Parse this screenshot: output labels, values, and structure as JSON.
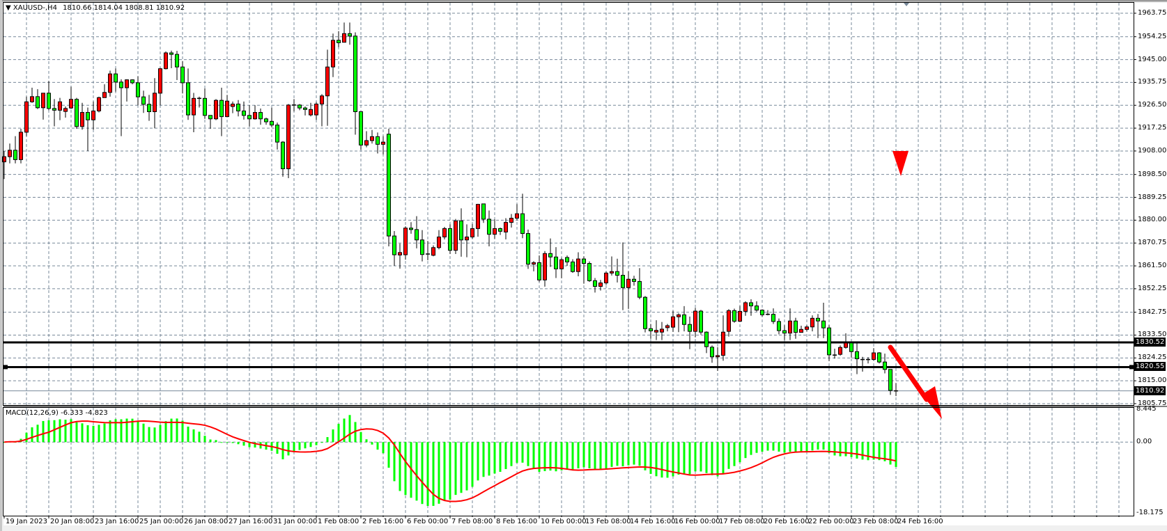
{
  "header": {
    "symbol": "XAUUSD-,H4",
    "ohlc": "1810.66 1814.04 1808.81 1810.92"
  },
  "indicator": {
    "label": "MACD(12,26,9)",
    "values": "-6.333 -4.823",
    "axis_labels": [
      "8.445",
      "0.00",
      "-18.175"
    ]
  },
  "colors": {
    "bull": "#ff0000",
    "bear": "#00ff00",
    "outline": "#000000",
    "grid": "#778899",
    "macd_histogram": "#00ff00",
    "macd_signal": "#ff0000",
    "annotation": "#ff0000"
  },
  "price_axis": [
    "1963.75",
    "1954.25",
    "1945.00",
    "1935.75",
    "1926.50",
    "1917.25",
    "1908.00",
    "1898.50",
    "1889.25",
    "1880.00",
    "1870.75",
    "1861.50",
    "1852.25",
    "1842.75",
    "1833.50",
    "1824.25",
    "1815.00",
    "1805.75"
  ],
  "price_tags": {
    "resistance": "1830.52",
    "support": "1820.55",
    "bid": "1810.92"
  },
  "time_axis": [
    "19 Jan 2023",
    "20 Jan 08:00",
    "23 Jan 16:00",
    "25 Jan 00:00",
    "26 Jan 08:00",
    "27 Jan 16:00",
    "31 Jan 00:00",
    "1 Feb 08:00",
    "2 Feb 16:00",
    "6 Feb 00:00",
    "7 Feb 08:00",
    "8 Feb 16:00",
    "10 Feb 00:00",
    "13 Feb 08:00",
    "14 Feb 16:00",
    "16 Feb 00:00",
    "17 Feb 08:00",
    "20 Feb 16:00",
    "22 Feb 00:00",
    "23 Feb 08:00",
    "24 Feb 16:00"
  ],
  "chart_data": {
    "type": "candlestick",
    "timeframe": "H4",
    "ylim": [
      1805.75,
      1963.75
    ],
    "grid": true,
    "horizontal_lines": [
      1830.52,
      1820.55
    ],
    "bid_line": 1810.92,
    "macd": {
      "fast": 12,
      "slow": 26,
      "signal": 9,
      "ylim": [
        -18.175,
        8.445
      ],
      "main": -6.333,
      "signal_value": -4.823
    },
    "ohlc": [
      [
        1903.6,
        1908,
        1896.6,
        1905.7
      ],
      [
        1905.7,
        1911,
        1903,
        1908.3
      ],
      [
        1908.3,
        1914,
        1903,
        1904.5
      ],
      [
        1904.5,
        1917,
        1903,
        1915.6
      ],
      [
        1915.6,
        1930,
        1914,
        1927.9
      ],
      [
        1927.9,
        1933.6,
        1927.5,
        1930
      ],
      [
        1930,
        1933,
        1925,
        1925.5
      ],
      [
        1925.5,
        1931.5,
        1920.7,
        1931.4
      ],
      [
        1931.4,
        1936.3,
        1924.5,
        1925.2
      ],
      [
        1925.2,
        1929,
        1918,
        1924.5
      ],
      [
        1924.5,
        1929.5,
        1920.5,
        1927.9
      ],
      [
        1924,
        1926,
        1921.5,
        1925.2
      ],
      [
        1925.4,
        1934,
        1925,
        1928.9
      ],
      [
        1928.9,
        1929.5,
        1917,
        1917.9
      ],
      [
        1917.9,
        1927.5,
        1916.6,
        1923.6
      ],
      [
        1923.6,
        1925.6,
        1908,
        1920.6
      ],
      [
        1920.6,
        1928,
        1916.6,
        1924.2
      ],
      [
        1924.2,
        1930,
        1923.6,
        1929.6
      ],
      [
        1929.6,
        1935,
        1930,
        1931.7
      ],
      [
        1931.7,
        1940.5,
        1930,
        1939.2
      ],
      [
        1939.2,
        1941.4,
        1932,
        1935.9
      ],
      [
        1935.9,
        1937,
        1914,
        1933.6
      ],
      [
        1933.6,
        1937,
        1928,
        1936.8
      ],
      [
        1936.8,
        1937,
        1935,
        1935.6
      ],
      [
        1935.6,
        1938.2,
        1926.5,
        1929.9
      ],
      [
        1929.9,
        1932.4,
        1923.4,
        1926.9
      ],
      [
        1926.9,
        1930.7,
        1920.2,
        1923.9
      ],
      [
        1923.9,
        1937.5,
        1917.2,
        1931.4
      ],
      [
        1931.4,
        1941.6,
        1926.5,
        1941.3
      ],
      [
        1941.3,
        1948.3,
        1941,
        1947.7
      ],
      [
        1947.7,
        1948.6,
        1941.5,
        1947.1
      ],
      [
        1947.1,
        1948.5,
        1936.7,
        1942
      ],
      [
        1942,
        1944.4,
        1931.3,
        1935.6
      ],
      [
        1935.6,
        1941.4,
        1920.6,
        1922.6
      ],
      [
        1922.6,
        1931.5,
        1915.6,
        1929.3
      ],
      [
        1929.3,
        1930,
        1925.6,
        1929.3
      ],
      [
        1929.3,
        1933.3,
        1921,
        1922.4
      ],
      [
        1922.4,
        1922.5,
        1917,
        1921
      ],
      [
        1921,
        1929,
        1920.5,
        1928.5
      ],
      [
        1928.5,
        1933.6,
        1914,
        1921.9
      ],
      [
        1921.9,
        1930.7,
        1922,
        1928.2
      ],
      [
        1926,
        1928,
        1923.3,
        1927
      ],
      [
        1927,
        1928.6,
        1922,
        1924.2
      ],
      [
        1924.2,
        1928,
        1920.7,
        1922.4
      ],
      [
        1922.4,
        1926.5,
        1918,
        1921
      ],
      [
        1921,
        1926.5,
        1920.7,
        1923.6
      ],
      [
        1923.6,
        1925.2,
        1918.6,
        1921
      ],
      [
        1921,
        1921.5,
        1918.6,
        1919.8
      ],
      [
        1920,
        1925.5,
        1917.6,
        1918.5
      ],
      [
        1918.5,
        1919.5,
        1908.6,
        1911.6
      ],
      [
        1911.6,
        1912,
        1897.6,
        1900.8
      ],
      [
        1900.8,
        1927,
        1897,
        1926.6
      ],
      [
        1926.6,
        1929,
        1924,
        1926.6
      ],
      [
        1926.6,
        1927,
        1924.5,
        1925.4
      ],
      [
        1925.4,
        1926,
        1922.4,
        1924.8
      ],
      [
        1922.6,
        1927.5,
        1922,
        1924.8
      ],
      [
        1922.6,
        1927.8,
        1920.6,
        1927
      ],
      [
        1927,
        1931,
        1918,
        1930.3
      ],
      [
        1930.3,
        1949,
        1918.2,
        1942
      ],
      [
        1942,
        1955.5,
        1937.9,
        1952.8
      ],
      [
        1952.8,
        1956.5,
        1950,
        1951.8
      ],
      [
        1952,
        1960,
        1951.9,
        1955.5
      ],
      [
        1955.5,
        1960,
        1951,
        1954.5
      ],
      [
        1954.5,
        1956,
        1914.6,
        1923.9
      ],
      [
        1923.9,
        1923.9,
        1908.5,
        1910.4
      ],
      [
        1910.4,
        1916,
        1909.5,
        1912.2
      ],
      [
        1912.2,
        1916.5,
        1911,
        1913.8
      ],
      [
        1913.8,
        1915.5,
        1907,
        1910.7
      ],
      [
        1910.7,
        1914,
        1906.6,
        1911.6
      ],
      [
        1914.8,
        1917,
        1869.4,
        1873.6
      ],
      [
        1873.6,
        1875.6,
        1861.5,
        1866
      ],
      [
        1865.9,
        1870.5,
        1860.4,
        1866.9
      ],
      [
        1866,
        1877.5,
        1864,
        1876.8
      ],
      [
        1876.8,
        1879.2,
        1874.5,
        1876.2
      ],
      [
        1876.2,
        1881.6,
        1868.6,
        1872
      ],
      [
        1872,
        1876,
        1863.3,
        1866.1
      ],
      [
        1866.3,
        1871.6,
        1863.8,
        1866.1
      ],
      [
        1865.8,
        1869.8,
        1865.4,
        1868.9
      ],
      [
        1868.9,
        1876,
        1868.2,
        1873.2
      ],
      [
        1873.2,
        1877.3,
        1872.2,
        1876.6
      ],
      [
        1876.6,
        1878.3,
        1866.3,
        1867.8
      ],
      [
        1867.8,
        1880.5,
        1866.3,
        1879.7
      ],
      [
        1879.7,
        1884.8,
        1865.2,
        1872
      ],
      [
        1872,
        1878.3,
        1865,
        1873.2
      ],
      [
        1873.2,
        1878.5,
        1872.5,
        1876.6
      ],
      [
        1876.6,
        1886.6,
        1873.3,
        1886.4
      ],
      [
        1886.6,
        1886.7,
        1878.9,
        1880.4
      ],
      [
        1880.4,
        1883.9,
        1869.4,
        1874.3
      ],
      [
        1874.3,
        1880.4,
        1872.5,
        1876.6
      ],
      [
        1876.6,
        1877,
        1874,
        1875.5
      ],
      [
        1875.2,
        1880.8,
        1872.2,
        1879.1
      ],
      [
        1879.1,
        1882.5,
        1877,
        1880.8
      ],
      [
        1880.8,
        1886.5,
        1880,
        1882.6
      ],
      [
        1882.6,
        1890.7,
        1872.7,
        1874.6
      ],
      [
        1874.6,
        1876.2,
        1860.3,
        1862.2
      ],
      [
        1862.2,
        1863.4,
        1859.3,
        1862.8
      ],
      [
        1862.8,
        1865.7,
        1855,
        1855.8
      ],
      [
        1855.8,
        1867.5,
        1853.1,
        1866.5
      ],
      [
        1866.5,
        1872.6,
        1861.1,
        1865.1
      ],
      [
        1865.1,
        1869.1,
        1856.6,
        1860.3
      ],
      [
        1860.3,
        1864.8,
        1856.5,
        1864
      ],
      [
        1864.9,
        1865.7,
        1861.5,
        1863.1
      ],
      [
        1863.1,
        1864.2,
        1858.7,
        1859.2
      ],
      [
        1859.2,
        1867,
        1857.3,
        1864.3
      ],
      [
        1864.3,
        1865.3,
        1854.3,
        1862.5
      ],
      [
        1862.5,
        1863.3,
        1855,
        1855.5
      ],
      [
        1855.5,
        1856.6,
        1850.7,
        1853.2
      ],
      [
        1853.2,
        1855.8,
        1851.5,
        1854.6
      ],
      [
        1854.6,
        1859.2,
        1853.8,
        1858.6
      ],
      [
        1858.6,
        1865.3,
        1857.6,
        1859.2
      ],
      [
        1859.2,
        1864.4,
        1854.8,
        1857.7
      ],
      [
        1857.7,
        1871,
        1843.6,
        1852.7
      ],
      [
        1852.7,
        1859.3,
        1844.1,
        1856.1
      ],
      [
        1856.1,
        1857.5,
        1853.5,
        1855.2
      ],
      [
        1855.2,
        1860.6,
        1848,
        1848.8
      ],
      [
        1848.8,
        1849.3,
        1834.6,
        1836.1
      ],
      [
        1836.1,
        1838,
        1832,
        1835.2
      ],
      [
        1834.7,
        1839.5,
        1831.5,
        1835.4
      ],
      [
        1834.7,
        1838.8,
        1831.5,
        1835.9
      ],
      [
        1836.5,
        1838,
        1835,
        1837.3
      ],
      [
        1836.7,
        1843.3,
        1834.8,
        1840.9
      ],
      [
        1840.9,
        1842.3,
        1834.7,
        1841.7
      ],
      [
        1841.7,
        1845.2,
        1835,
        1837.8
      ],
      [
        1837.8,
        1841,
        1827.8,
        1835
      ],
      [
        1835,
        1844.5,
        1832.6,
        1843.2
      ],
      [
        1843.2,
        1843.7,
        1833.7,
        1834.7
      ],
      [
        1834.7,
        1835,
        1826.2,
        1828.8
      ],
      [
        1828.6,
        1829.3,
        1822.3,
        1824.7
      ],
      [
        1824.7,
        1828.6,
        1819,
        1825.2
      ],
      [
        1825.3,
        1841.5,
        1823.1,
        1834.7
      ],
      [
        1835,
        1844,
        1832.9,
        1843.4
      ],
      [
        1843.4,
        1844.2,
        1838.5,
        1839.1
      ],
      [
        1839.1,
        1845.3,
        1838.8,
        1843.1
      ],
      [
        1843.1,
        1847.2,
        1841.3,
        1846.6
      ],
      [
        1846.6,
        1848,
        1841.3,
        1845.3
      ],
      [
        1845.3,
        1847.2,
        1843,
        1843.6
      ],
      [
        1843.6,
        1843.9,
        1841,
        1841.7
      ],
      [
        1841.9,
        1843.6,
        1841.5,
        1841.9
      ],
      [
        1841.9,
        1844.3,
        1838,
        1839
      ],
      [
        1839,
        1840.2,
        1833.8,
        1835.3
      ],
      [
        1835.3,
        1837.5,
        1831.5,
        1834.3
      ],
      [
        1834.3,
        1844.3,
        1831.5,
        1839.2
      ],
      [
        1839.2,
        1840.5,
        1832,
        1834.6
      ],
      [
        1834.6,
        1837.3,
        1835,
        1835.8
      ],
      [
        1835.8,
        1837.5,
        1835,
        1836.8
      ],
      [
        1836.8,
        1841.5,
        1835,
        1840.3
      ],
      [
        1840.3,
        1842,
        1832.3,
        1839.2
      ],
      [
        1839.2,
        1846.6,
        1832.3,
        1836.4
      ],
      [
        1836.4,
        1837.5,
        1823,
        1825.5
      ],
      [
        1825.4,
        1828,
        1824,
        1825.4
      ],
      [
        1825.7,
        1829.3,
        1825.2,
        1828.5
      ],
      [
        1828.5,
        1834.2,
        1828,
        1830.3
      ],
      [
        1830.3,
        1830.5,
        1824.3,
        1826.8
      ],
      [
        1826.8,
        1830.5,
        1817.7,
        1823.9
      ],
      [
        1823.6,
        1824.7,
        1818.7,
        1823.6
      ],
      [
        1823.6,
        1824.5,
        1822,
        1823.6
      ],
      [
        1823.6,
        1828.2,
        1823.2,
        1826.3
      ],
      [
        1826.3,
        1826.6,
        1822,
        1822.6
      ],
      [
        1822.6,
        1826,
        1818,
        1819.6
      ],
      [
        1819.6,
        1819.7,
        1809.3,
        1811.1
      ],
      [
        1810.66,
        1814.04,
        1808.81,
        1810.92
      ]
    ]
  }
}
